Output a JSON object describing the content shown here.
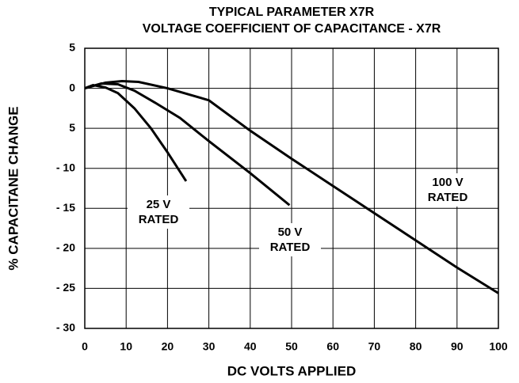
{
  "chart_data": {
    "type": "line",
    "title": "TYPICAL PARAMETER X7R",
    "subtitle": "VOLTAGE COEFFICIENT OF CAPACITANCE - X7R",
    "x_label": "DC VOLTS APPLIED",
    "y_label": "% CAPACITANE CHANGE",
    "xlim": [
      0,
      100
    ],
    "xticks": [
      0,
      10,
      20,
      30,
      40,
      50,
      60,
      70,
      80,
      90,
      100
    ],
    "ylim": [
      -30,
      5
    ],
    "yticks": [
      5,
      0,
      {
        "value": -5,
        "label": "5"
      },
      {
        "value": -10,
        "label": "- 10"
      },
      {
        "value": -15,
        "label": "- 15"
      },
      {
        "value": -20,
        "label": "- 20"
      },
      {
        "value": -25,
        "label": "- 25"
      },
      {
        "value": -30,
        "label": "- 30"
      }
    ],
    "grid": true,
    "series": [
      {
        "name": "25 V RATED",
        "color": "#000000",
        "x": [
          0,
          2,
          5,
          8,
          12,
          16,
          20,
          24.5
        ],
        "values": [
          0,
          0.4,
          0.1,
          -0.6,
          -2.5,
          -5,
          -8,
          -11.6
        ]
      },
      {
        "name": "50 V RATED",
        "color": "#000000",
        "x": [
          0,
          4,
          8,
          12,
          17,
          23,
          30,
          40,
          49.5
        ],
        "values": [
          0,
          0.6,
          0.5,
          -0.3,
          -1.8,
          -3.7,
          -6.6,
          -10.6,
          -14.6
        ]
      },
      {
        "name": "100 V RATED",
        "color": "#000000",
        "x": [
          0,
          5,
          9,
          13,
          20,
          30,
          40,
          50,
          60,
          70,
          80,
          90,
          100
        ],
        "values": [
          0,
          0.7,
          0.9,
          0.8,
          0,
          -1.5,
          -5.3,
          -8.8,
          -12.2,
          -15.6,
          -19,
          -22.4,
          -25.6
        ]
      }
    ]
  }
}
